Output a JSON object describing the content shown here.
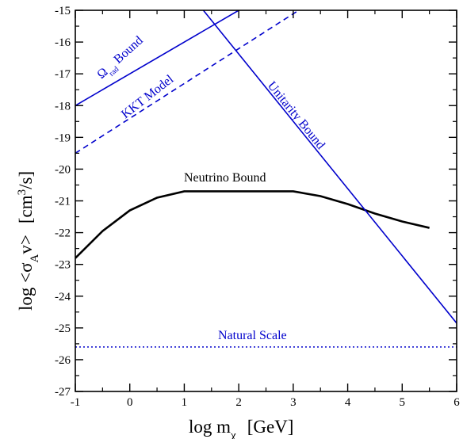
{
  "chart_data": {
    "type": "line",
    "xlabel": {
      "main": "log  m",
      "sub": "χ",
      "unit": "[GeV]"
    },
    "ylabel": {
      "main": "log  <σ",
      "sub": "A",
      "mid": "v>",
      "unit": "[cm",
      "sup": "3",
      "unit_end": "/s]"
    },
    "xlim": [
      -1,
      6
    ],
    "ylim": [
      -27,
      -15
    ],
    "xticks": [
      "-1",
      "0",
      "1",
      "2",
      "3",
      "4",
      "5",
      "6"
    ],
    "yticks": [
      "-27",
      "-26",
      "-25",
      "-24",
      "-23",
      "-22",
      "-21",
      "-20",
      "-19",
      "-18",
      "-17",
      "-16",
      "-15"
    ],
    "grid": false,
    "series": [
      {
        "name": "Neutrino Bound",
        "color": "#000000",
        "style": "solid",
        "x": [
          -1,
          -0.5,
          0,
          0.5,
          1,
          1.5,
          2,
          2.5,
          3,
          3.5,
          4,
          4.5,
          5,
          5.5
        ],
        "y": [
          -22.8,
          -21.95,
          -21.3,
          -20.9,
          -20.7,
          -20.7,
          -20.7,
          -20.7,
          -20.7,
          -20.85,
          -21.1,
          -21.4,
          -21.65,
          -21.85
        ]
      },
      {
        "name": "Ω",
        "name_sub": "rad",
        "name_end": " Bound",
        "color": "#0000cc",
        "style": "solid",
        "x": [
          -1,
          2
        ],
        "y": [
          -18,
          -15
        ]
      },
      {
        "name": "KKT Model",
        "color": "#0000cc",
        "style": "dashed",
        "x": [
          -1,
          3.1
        ],
        "y": [
          -19.5,
          -15
        ]
      },
      {
        "name": "Unitarity Bound",
        "color": "#0000cc",
        "style": "solid",
        "x": [
          1.35,
          6
        ],
        "y": [
          -15,
          -24.85
        ]
      },
      {
        "name": "Natural Scale",
        "color": "#0000cc",
        "style": "dotted",
        "x": [
          -1,
          6
        ],
        "y": [
          -25.6,
          -25.6
        ]
      }
    ]
  }
}
